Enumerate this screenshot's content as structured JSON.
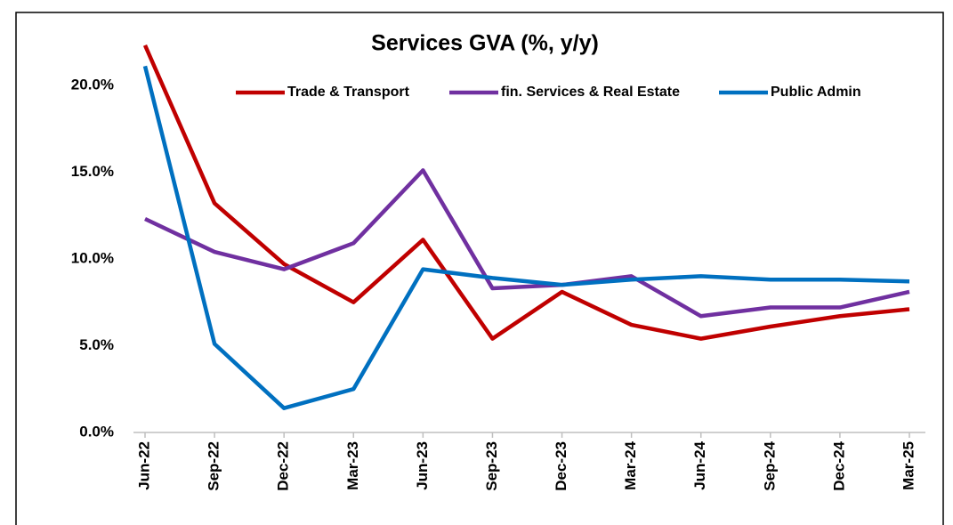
{
  "chart_data": {
    "type": "line",
    "title": "Services GVA (%, y/y)",
    "categories": [
      "Jun-22",
      "Sep-22",
      "Dec-22",
      "Mar-23",
      "Jun-23",
      "Sep-23",
      "Dec-23",
      "Mar-24",
      "Jun-24",
      "Sep-24",
      "Dec-24",
      "Mar-25"
    ],
    "series": [
      {
        "name": "Trade & Transport",
        "color": "#c00000",
        "values": [
          22.3,
          13.2,
          9.7,
          7.5,
          11.1,
          5.4,
          8.1,
          6.2,
          5.4,
          6.1,
          6.7,
          7.1
        ]
      },
      {
        "name": "fin. Services & Real Estate",
        "color": "#7030a0",
        "values": [
          12.3,
          10.4,
          9.4,
          10.9,
          15.1,
          8.3,
          8.5,
          9.0,
          6.7,
          7.2,
          7.2,
          8.1
        ]
      },
      {
        "name": "Public Admin",
        "color": "#0070c0",
        "values": [
          21.1,
          5.1,
          1.4,
          2.5,
          9.4,
          8.9,
          8.5,
          8.8,
          9.0,
          8.8,
          8.8,
          8.7
        ]
      }
    ],
    "ylim": [
      0,
      22.5
    ],
    "yticks": [
      {
        "value": 0,
        "label": "0.0%"
      },
      {
        "value": 5,
        "label": "5.0%"
      },
      {
        "value": 10,
        "label": "10.0%"
      },
      {
        "value": 15,
        "label": "15.0%"
      },
      {
        "value": 20,
        "label": "20.0%"
      }
    ],
    "legend": "top",
    "grid": false
  }
}
